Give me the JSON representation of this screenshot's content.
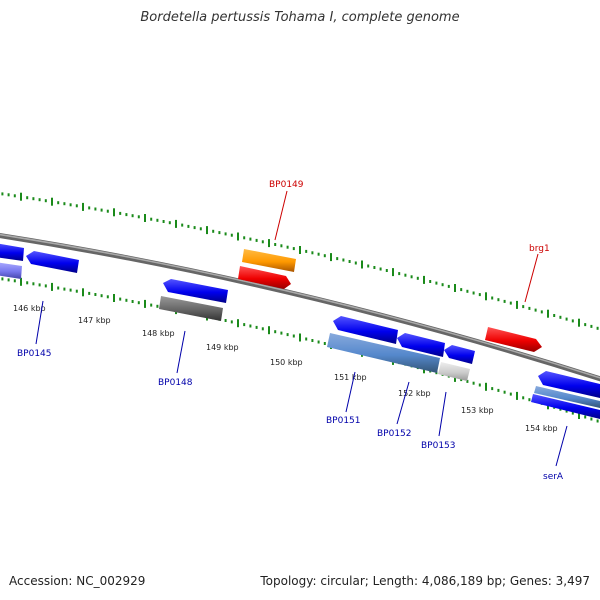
{
  "header": {
    "title": "Bordetella pertussis Tohama I, complete genome"
  },
  "footer": {
    "accession": "Accession: NC_002929",
    "summary": "Topology: circular; Length: 4,086,189 bp; Genes: 3,497"
  },
  "map": {
    "scale_labels": [
      "146 kbp",
      "147 kbp",
      "148 kbp",
      "149 kbp",
      "150 kbp",
      "151 kbp",
      "152 kbp",
      "153 kbp",
      "154 kbp"
    ],
    "gene_labels": [
      {
        "text": "BP0149",
        "strand": "forward",
        "color": "#cc0000"
      },
      {
        "text": "brg1",
        "strand": "forward",
        "color": "#cc0000"
      },
      {
        "text": "BP0145",
        "strand": "reverse",
        "color": "#0000aa"
      },
      {
        "text": "BP0148",
        "strand": "reverse",
        "color": "#0000aa"
      },
      {
        "text": "BP0151",
        "strand": "reverse",
        "color": "#0000aa"
      },
      {
        "text": "BP0152",
        "strand": "reverse",
        "color": "#0000aa"
      },
      {
        "text": "BP0153",
        "strand": "reverse",
        "color": "#0000aa"
      },
      {
        "text": "serA",
        "strand": "reverse",
        "color": "#0000aa"
      }
    ],
    "colors": {
      "backbone": "#888888",
      "ticks": "#1a8a1a",
      "forward_gene": "#ee0000",
      "forward_gene_alt": "#ff9900",
      "reverse_gene": "#0000ee",
      "reverse_gene_alt": "#5588cc"
    }
  }
}
